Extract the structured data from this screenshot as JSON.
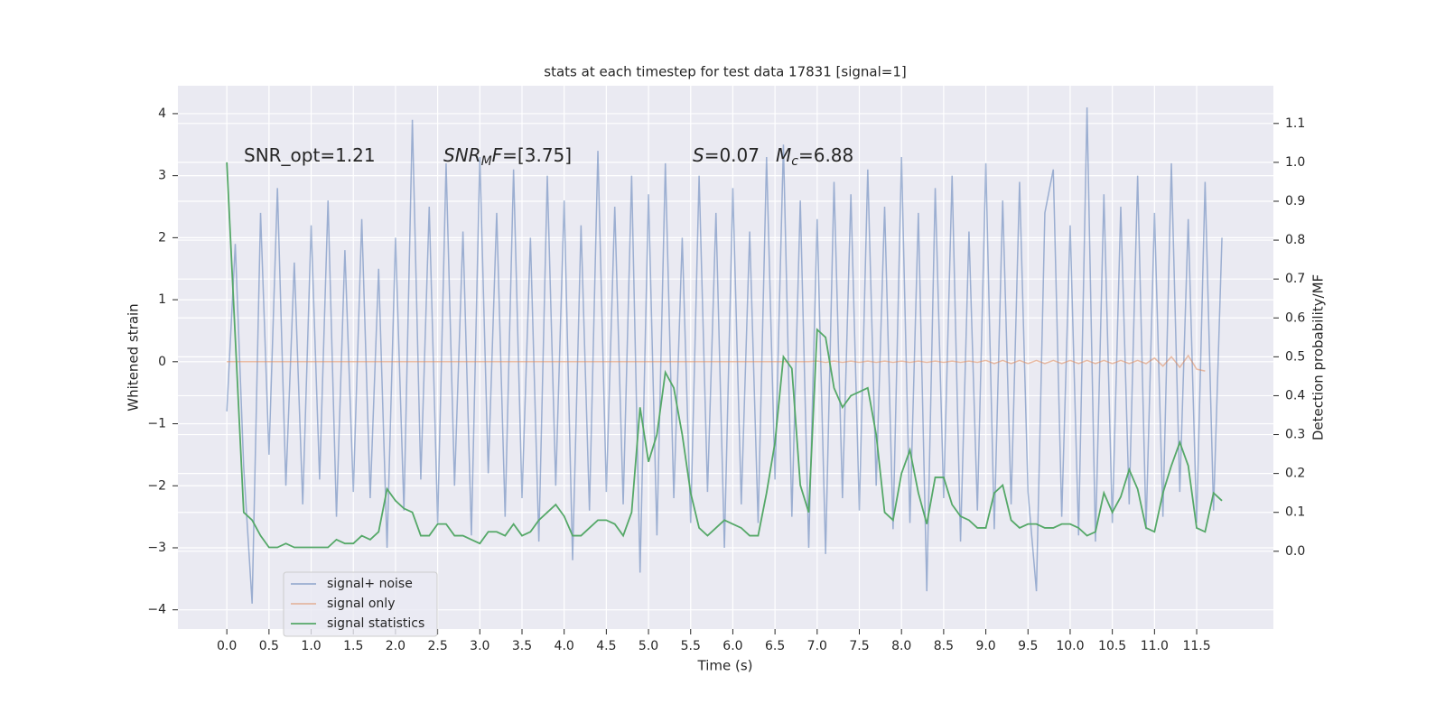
{
  "chart_data": {
    "type": "line",
    "title": "stats at each timestep for test data 17831 [signal=1]",
    "xlabel": "Time (s)",
    "ylabel": "Whitened strain",
    "y2label": "Detection probability/MF",
    "annotations": [
      [
        {
          "t": "SNR_opt=1.21"
        }
      ],
      [
        {
          "t": "SNR",
          "style": "italic"
        },
        {
          "t": "M",
          "style": "sub"
        },
        {
          "t": "F",
          "style": "italic"
        },
        {
          "t": "=[3.75]"
        }
      ],
      [
        {
          "t": "S",
          "style": "italic"
        },
        {
          "t": "=0.07"
        }
      ],
      [
        {
          "t": "M",
          "style": "italic"
        },
        {
          "t": "c",
          "style": "sub"
        },
        {
          "t": "=6.88"
        }
      ]
    ],
    "xlim": [
      -0.58,
      12.41
    ],
    "ylim": [
      -4.31,
      4.45
    ],
    "y2lim": [
      -0.2,
      1.197
    ],
    "xticks": [
      {
        "value": 0,
        "label": "0.0"
      },
      0.5,
      {
        "value": 1,
        "label": "1.0"
      },
      1.5,
      {
        "value": 2,
        "label": "2.0"
      },
      2.5,
      {
        "value": 3,
        "label": "3.0"
      },
      3.5,
      {
        "value": 4,
        "label": "4.0"
      },
      4.5,
      {
        "value": 5,
        "label": "5.0"
      },
      5.5,
      {
        "value": 6,
        "label": "6.0"
      },
      6.5,
      {
        "value": 7,
        "label": "7.0"
      },
      7.5,
      {
        "value": 8,
        "label": "8.0"
      },
      8.5,
      {
        "value": 9,
        "label": "9.0"
      },
      9.5,
      {
        "value": 10,
        "label": "10.0"
      },
      10.5,
      {
        "value": 11,
        "label": "11.0"
      },
      11.5
    ],
    "yticks": [
      {
        "value": -4,
        "label": "−4"
      },
      {
        "value": -3,
        "label": "−3"
      },
      {
        "value": -2,
        "label": "−2"
      },
      {
        "value": -1,
        "label": "−1"
      },
      0,
      1,
      2,
      3,
      4
    ],
    "y2ticks": [
      {
        "value": 0,
        "label": "0.0"
      },
      0.1,
      0.2,
      0.3,
      0.4,
      0.5,
      0.6,
      0.7,
      0.8,
      0.9,
      {
        "value": 1,
        "label": "1.0"
      },
      1.1
    ],
    "grid": true,
    "legend": "lower left",
    "x": [
      0.0,
      0.1,
      0.2,
      0.3,
      0.4,
      0.5,
      0.6,
      0.7,
      0.8,
      0.9,
      1.0,
      1.1,
      1.2,
      1.3,
      1.4,
      1.5,
      1.6,
      1.7,
      1.8,
      1.9,
      2.0,
      2.1,
      2.2,
      2.3,
      2.4,
      2.5,
      2.6,
      2.7,
      2.8,
      2.9,
      3.0,
      3.1,
      3.2,
      3.3,
      3.4,
      3.5,
      3.6,
      3.7,
      3.8,
      3.9,
      4.0,
      4.1,
      4.2,
      4.3,
      4.4,
      4.5,
      4.6,
      4.7,
      4.8,
      4.9,
      5.0,
      5.1,
      5.2,
      5.3,
      5.4,
      5.5,
      5.6,
      5.7,
      5.8,
      5.9,
      6.0,
      6.1,
      6.2,
      6.3,
      6.4,
      6.5,
      6.6,
      6.7,
      6.8,
      6.9,
      7.0,
      7.1,
      7.2,
      7.3,
      7.4,
      7.5,
      7.6,
      7.7,
      7.8,
      7.9,
      8.0,
      8.1,
      8.2,
      8.3,
      8.4,
      8.5,
      8.6,
      8.7,
      8.8,
      8.9,
      9.0,
      9.1,
      9.2,
      9.3,
      9.4,
      9.5,
      9.6,
      9.7,
      9.8,
      9.9,
      10.0,
      10.1,
      10.2,
      10.3,
      10.4,
      10.5,
      10.6,
      10.7,
      10.8,
      10.9,
      11.0,
      11.1,
      11.2,
      11.3,
      11.4,
      11.5,
      11.6,
      11.7,
      11.8
    ],
    "series": [
      {
        "name": "signal+ noise",
        "color": "#4c72b0",
        "alpha": 0.5,
        "values": [
          -0.8,
          1.9,
          -1.7,
          -3.9,
          2.4,
          -1.5,
          2.8,
          -2.0,
          1.6,
          -2.3,
          2.2,
          -1.9,
          2.6,
          -2.5,
          1.8,
          -2.1,
          2.3,
          -2.2,
          1.5,
          -3.0,
          2.0,
          -2.4,
          3.9,
          -1.9,
          2.5,
          -2.6,
          3.2,
          -2.0,
          2.1,
          -2.8,
          3.3,
          -1.8,
          2.4,
          -2.5,
          3.1,
          -2.2,
          2.0,
          -2.9,
          3.0,
          -2.0,
          2.6,
          -3.2,
          2.2,
          -2.4,
          3.4,
          -2.1,
          2.5,
          -2.3,
          3.0,
          -3.4,
          2.7,
          -2.8,
          3.2,
          -2.2,
          2.0,
          -2.6,
          3.0,
          -2.1,
          2.4,
          -3.0,
          2.8,
          -2.3,
          2.1,
          -2.6,
          3.3,
          -1.9,
          3.5,
          -2.5,
          2.6,
          -3.0,
          2.3,
          -3.1,
          2.9,
          -2.2,
          2.7,
          -2.4,
          3.1,
          -2.0,
          2.5,
          -2.7,
          3.3,
          -2.6,
          2.4,
          -3.7,
          2.8,
          -2.2,
          3.0,
          -2.9,
          2.1,
          -2.4,
          3.2,
          -2.7,
          2.6,
          -2.3,
          2.9,
          -2.1,
          -3.7,
          2.4,
          3.1,
          -2.5,
          2.2,
          -2.8,
          4.1,
          -2.9,
          2.7,
          -2.6,
          2.5,
          -2.3,
          3.0,
          -2.7,
          2.4,
          -2.5,
          3.2,
          -2.1,
          2.3,
          -2.6,
          2.9,
          -2.4,
          2.0
        ]
      },
      {
        "name": "signal only",
        "color": "#dd8452",
        "alpha": 0.5,
        "values": [
          0,
          0,
          0,
          0,
          0,
          0,
          0,
          0,
          0,
          0,
          0,
          0,
          0,
          0,
          0,
          0,
          0,
          0,
          0,
          0,
          0,
          0,
          0,
          0,
          0,
          0,
          0,
          0,
          0,
          0,
          0,
          0,
          0,
          0,
          0,
          0,
          0,
          0,
          0,
          0,
          0,
          0,
          0,
          0,
          0,
          0,
          0,
          0,
          0,
          0,
          0,
          0,
          0,
          0,
          0,
          0,
          0,
          0,
          0,
          0,
          0,
          0,
          0,
          0,
          0,
          0,
          0,
          0,
          0,
          0,
          0.01,
          -0.01,
          0.01,
          -0.01,
          0.01,
          -0.01,
          0.01,
          -0.01,
          0.01,
          -0.01,
          0.01,
          -0.01,
          0.01,
          -0.01,
          0.01,
          -0.01,
          0.01,
          -0.01,
          0.01,
          -0.01,
          0.02,
          -0.03,
          0.02,
          -0.03,
          0.02,
          -0.03,
          0.02,
          -0.03,
          0.02,
          -0.03,
          0.02,
          -0.03,
          0.02,
          -0.03,
          0.02,
          -0.03,
          0.02,
          -0.03,
          0.02,
          -0.03,
          0.06,
          -0.07,
          0.08,
          -0.09,
          0.1,
          -0.12,
          -0.15,
          null,
          null
        ]
      },
      {
        "name": "signal statistics",
        "color": "#55a868",
        "alpha": 1,
        "axis": "y2",
        "values": [
          1.0,
          0.55,
          0.1,
          0.08,
          0.04,
          0.01,
          0.01,
          0.02,
          0.01,
          0.01,
          0.01,
          0.01,
          0.01,
          0.03,
          0.02,
          0.02,
          0.04,
          0.03,
          0.05,
          0.16,
          0.13,
          0.11,
          0.1,
          0.04,
          0.04,
          0.07,
          0.07,
          0.04,
          0.04,
          0.03,
          0.02,
          0.05,
          0.05,
          0.04,
          0.07,
          0.04,
          0.05,
          0.08,
          0.1,
          0.12,
          0.09,
          0.04,
          0.04,
          0.06,
          0.08,
          0.08,
          0.07,
          0.04,
          0.1,
          0.37,
          0.23,
          0.3,
          0.46,
          0.42,
          0.3,
          0.15,
          0.06,
          0.04,
          0.06,
          0.08,
          0.07,
          0.06,
          0.04,
          0.04,
          0.15,
          0.28,
          0.5,
          0.47,
          0.17,
          0.1,
          0.57,
          0.55,
          0.42,
          0.37,
          0.4,
          0.41,
          0.42,
          0.3,
          0.1,
          0.08,
          0.2,
          0.26,
          0.15,
          0.07,
          0.19,
          0.19,
          0.12,
          0.09,
          0.08,
          0.06,
          0.06,
          0.15,
          0.17,
          0.08,
          0.06,
          0.07,
          0.07,
          0.06,
          0.06,
          0.07,
          0.07,
          0.06,
          0.04,
          0.05,
          0.15,
          0.1,
          0.14,
          0.21,
          0.16,
          0.06,
          0.05,
          0.15,
          0.22,
          0.28,
          0.22,
          0.06,
          0.05,
          0.15,
          0.13
        ]
      }
    ]
  }
}
